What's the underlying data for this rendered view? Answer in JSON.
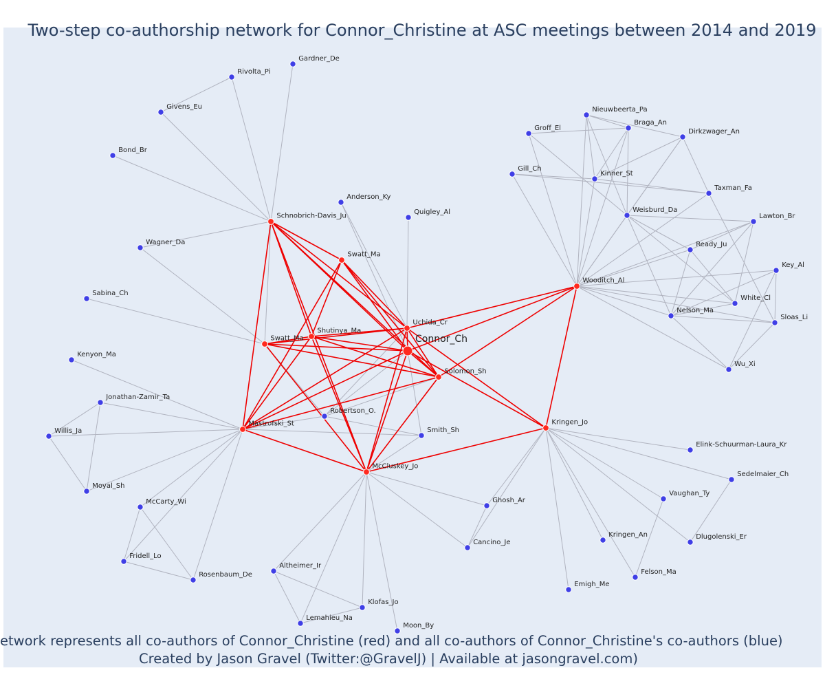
{
  "title": "Two-step co-authorship network for Connor_Christine at ASC meetings between 2014 and 2019",
  "footer": {
    "line1": "Network represents all co-authors of Connor_Christine (red) and all co-authors of Connor_Christine's co-authors (blue)",
    "line2": "Created by Jason Gravel (Twitter:@GravelJ) | Available at jasongravel.com)"
  },
  "colors": {
    "background": "#e5ecf6",
    "red_node": "#ff2a1f",
    "blue_node": "#3f3fe6",
    "red_edge": "#ee0000",
    "grey_edge": "#b0b3bf",
    "title": "#2a3f5f"
  },
  "center_node": "Connor_Ch",
  "red_nodes": [
    "Schnobrich-Davis_Ju",
    "Swatt_Ma (1)",
    "Swatt_Ma (2)",
    "Shutinya_Ma",
    "Uchida_Cr",
    "Solomon_Sh",
    "Mastrofski_St",
    "McCluskey_Jo",
    "Kringen_Jo",
    "Wooditch_Al"
  ],
  "blue_nodes": [
    "Gardner_De",
    "Rivolta_Pi",
    "Givens_Eu",
    "Bond_Br",
    "Anderson_Ky",
    "Quigley_Al",
    "Wagner_Da",
    "Sabina_Ch",
    "Kenyon_Ma",
    "Jonathan-Zamir_Ta",
    "Willis_Ja",
    "Moyal_Sh",
    "McCarty_Wi",
    "Fridell_Lo",
    "Rosenbaum_De",
    "Robertson_O.",
    "Smith_Sh",
    "Altheimer_Ir",
    "Lemahieu_Na",
    "Klofas_Jo",
    "Moon_By",
    "Ghosh_Ar",
    "Cancino_Je",
    "Emigh_Me",
    "Kringen_An",
    "Felson_Ma",
    "Vaughan_Ty",
    "Dlugolenski_Er",
    "Sedelmaier_Ch",
    "Elink-Schuurman-Laura_Kr",
    "Nieuwbeerta_Pa",
    "Braga_An",
    "Groff_El",
    "Dirkzwager_An",
    "Gill_Ch",
    "Kinner_St",
    "Taxman_Fa",
    "Weisburd_Da",
    "Lawton_Br",
    "Ready_Ju",
    "Key_Al",
    "White_Cl",
    "Nelson_Ma",
    "Sloas_Li",
    "Wu_Xi"
  ],
  "labels": {
    "Connor_Ch": "Connor_Ch",
    "Schnobrich-Davis_Ju": "Schnobrich-Davis_Ju",
    "Swatt_Ma (1)": "Swatt_Ma",
    "Swatt_Ma (2)": "Swatt_Ma",
    "Shutinya_Ma": "Shutinya_Ma",
    "Uchida_Cr": "Uchida_Cr",
    "Solomon_Sh": "Solomon_Sh",
    "Mastrofski_St": "Mastrofski_St",
    "McCluskey_Jo": "McCluskey_Jo",
    "Kringen_Jo": "Kringen_Jo",
    "Wooditch_Al": "Wooditch_Al",
    "Gardner_De": "Gardner_De",
    "Rivolta_Pi": "Rivolta_Pi",
    "Givens_Eu": "Givens_Eu",
    "Bond_Br": "Bond_Br",
    "Anderson_Ky": "Anderson_Ky",
    "Quigley_Al": "Quigley_Al",
    "Wagner_Da": "Wagner_Da",
    "Sabina_Ch": "Sabina_Ch",
    "Kenyon_Ma": "Kenyon_Ma",
    "Jonathan-Zamir_Ta": "Jonathan-Zamir_Ta",
    "Willis_Ja": "Willis_Ja",
    "Moyal_Sh": "Moyal_Sh",
    "McCarty_Wi": "McCarty_Wi",
    "Fridell_Lo": "Fridell_Lo",
    "Rosenbaum_De": "Rosenbaum_De",
    "Robertson_O.": "Robertson_O.",
    "Smith_Sh": "Smith_Sh",
    "Altheimer_Ir": "Altheimer_Ir",
    "Lemahieu_Na": "Lemahieu_Na",
    "Klofas_Jo": "Klofas_Jo",
    "Moon_By": "Moon_By",
    "Ghosh_Ar": "Ghosh_Ar",
    "Cancino_Je": "Cancino_Je",
    "Emigh_Me": "Emigh_Me",
    "Kringen_An": "Kringen_An",
    "Felson_Ma": "Felson_Ma",
    "Vaughan_Ty": "Vaughan_Ty",
    "Dlugolenski_Er": "Dlugolenski_Er",
    "Sedelmaier_Ch": "Sedelmaier_Ch",
    "Elink-Schuurman-Laura_Kr": "Elink-Schuurman-Laura_Kr",
    "Nieuwbeerta_Pa": "Nieuwbeerta_Pa",
    "Braga_An": "Braga_An",
    "Groff_El": "Groff_El",
    "Dirkzwager_An": "Dirkzwager_An",
    "Gill_Ch": "Gill_Ch",
    "Kinner_St": "Kinner_St",
    "Taxman_Fa": "Taxman_Fa",
    "Weisburd_Da": "Weisburd_Da",
    "Lawton_Br": "Lawton_Br",
    "Ready_Ju": "Ready_Ju",
    "Key_Al": "Key_Al",
    "White_Cl": "White_Cl",
    "Nelson_Ma": "Nelson_Ma",
    "Sloas_Li": "Sloas_Li",
    "Wu_Xi": "Wu_Xi"
  },
  "red_edges": [
    [
      "Schnobrich-Davis_Ju",
      "Swatt_Ma (2)"
    ],
    [
      "Schnobrich-Davis_Ju",
      "Shutinya_Ma"
    ],
    [
      "Schnobrich-Davis_Ju",
      "Uchida_Cr"
    ],
    [
      "Schnobrich-Davis_Ju",
      "Connor_Ch"
    ],
    [
      "Schnobrich-Davis_Ju",
      "Solomon_Sh"
    ],
    [
      "Schnobrich-Davis_Ju",
      "McCluskey_Jo"
    ],
    [
      "Swatt_Ma (1)",
      "Shutinya_Ma"
    ],
    [
      "Swatt_Ma (1)",
      "Uchida_Cr"
    ],
    [
      "Swatt_Ma (1)",
      "Connor_Ch"
    ],
    [
      "Swatt_Ma (1)",
      "Solomon_Sh"
    ],
    [
      "Swatt_Ma (1)",
      "McCluskey_Jo"
    ],
    [
      "Swatt_Ma (2)",
      "Shutinya_Ma"
    ],
    [
      "Swatt_Ma (2)",
      "Uchida_Cr"
    ],
    [
      "Swatt_Ma (2)",
      "Connor_Ch"
    ],
    [
      "Swatt_Ma (2)",
      "Solomon_Sh"
    ],
    [
      "Swatt_Ma (2)",
      "Mastrofski_St"
    ],
    [
      "Shutinya_Ma",
      "Uchida_Cr"
    ],
    [
      "Shutinya_Ma",
      "Connor_Ch"
    ],
    [
      "Shutinya_Ma",
      "Solomon_Sh"
    ],
    [
      "Shutinya_Ma",
      "Mastrofski_St"
    ],
    [
      "Shutinya_Ma",
      "McCluskey_Jo"
    ],
    [
      "Uchida_Cr",
      "Connor_Ch"
    ],
    [
      "Uchida_Cr",
      "Solomon_Sh"
    ],
    [
      "Uchida_Cr",
      "Mastrofski_St"
    ],
    [
      "Uchida_Cr",
      "McCluskey_Jo"
    ],
    [
      "Uchida_Cr",
      "Wooditch_Al"
    ],
    [
      "Uchida_Cr",
      "Kringen_Jo"
    ],
    [
      "Connor_Ch",
      "Solomon_Sh"
    ],
    [
      "Connor_Ch",
      "Mastrofski_St"
    ],
    [
      "Connor_Ch",
      "McCluskey_Jo"
    ],
    [
      "Connor_Ch",
      "Kringen_Jo"
    ],
    [
      "Connor_Ch",
      "Wooditch_Al"
    ],
    [
      "Solomon_Sh",
      "Mastrofski_St"
    ],
    [
      "Solomon_Sh",
      "McCluskey_Jo"
    ],
    [
      "Solomon_Sh",
      "Wooditch_Al"
    ],
    [
      "Mastrofski_St",
      "McCluskey_Jo"
    ],
    [
      "Mastrofski_St",
      "Schnobrich-Davis_Ju"
    ],
    [
      "McCluskey_Jo",
      "Kringen_Jo"
    ],
    [
      "Kringen_Jo",
      "Wooditch_Al"
    ]
  ],
  "grey_edges": [
    [
      "Schnobrich-Davis_Ju",
      "Gardner_De"
    ],
    [
      "Schnobrich-Davis_Ju",
      "Rivolta_Pi"
    ],
    [
      "Schnobrich-Davis_Ju",
      "Givens_Eu"
    ],
    [
      "Schnobrich-Davis_Ju",
      "Bond_Br"
    ],
    [
      "Schnobrich-Davis_Ju",
      "Wagner_Da"
    ],
    [
      "Rivolta_Pi",
      "Givens_Eu"
    ],
    [
      "Anderson_Ky",
      "Uchida_Cr"
    ],
    [
      "Anderson_Ky",
      "Connor_Ch"
    ],
    [
      "Quigley_Al",
      "Uchida_Cr"
    ],
    [
      "Wagner_Da",
      "Swatt_Ma (1)"
    ],
    [
      "Sabina_Ch",
      "Swatt_Ma (1)"
    ],
    [
      "Swatt_Ma (1)",
      "Schnobrich-Davis_Ju"
    ],
    [
      "Swatt_Ma (1)",
      "Robertson_O."
    ],
    [
      "Kenyon_Ma",
      "Mastrofski_St"
    ],
    [
      "Jonathan-Zamir_Ta",
      "Mastrofski_St"
    ],
    [
      "Willis_Ja",
      "Mastrofski_St"
    ],
    [
      "Moyal_Sh",
      "Mastrofski_St"
    ],
    [
      "McCarty_Wi",
      "Mastrofski_St"
    ],
    [
      "Rosenbaum_De",
      "Mastrofski_St"
    ],
    [
      "Jonathan-Zamir_Ta",
      "Willis_Ja"
    ],
    [
      "Jonathan-Zamir_Ta",
      "Moyal_Sh"
    ],
    [
      "Willis_Ja",
      "Moyal_Sh"
    ],
    [
      "McCarty_Wi",
      "Fridell_Lo"
    ],
    [
      "McCarty_Wi",
      "Rosenbaum_De"
    ],
    [
      "Fridell_Lo",
      "Rosenbaum_De"
    ],
    [
      "Fridell_Lo",
      "Mastrofski_St"
    ],
    [
      "Robertson_O.",
      "Solomon_Sh"
    ],
    [
      "Robertson_O.",
      "Connor_Ch"
    ],
    [
      "Robertson_O.",
      "Smith_Sh"
    ],
    [
      "Robertson_O.",
      "Mastrofski_St"
    ],
    [
      "Robertson_O.",
      "Uchida_Cr"
    ],
    [
      "Smith_Sh",
      "Connor_Ch"
    ],
    [
      "Smith_Sh",
      "McCluskey_Jo"
    ],
    [
      "Smith_Sh",
      "Mastrofski_St"
    ],
    [
      "McCluskey_Jo",
      "Altheimer_Ir"
    ],
    [
      "McCluskey_Jo",
      "Lemahieu_Na"
    ],
    [
      "McCluskey_Jo",
      "Klofas_Jo"
    ],
    [
      "McCluskey_Jo",
      "Moon_By"
    ],
    [
      "McCluskey_Jo",
      "Ghosh_Ar"
    ],
    [
      "McCluskey_Jo",
      "Cancino_Je"
    ],
    [
      "Altheimer_Ir",
      "Klofas_Jo"
    ],
    [
      "Altheimer_Ir",
      "Lemahieu_Na"
    ],
    [
      "Lemahieu_Na",
      "Klofas_Jo"
    ],
    [
      "Kringen_Jo",
      "Ghosh_Ar"
    ],
    [
      "Kringen_Jo",
      "Cancino_Je"
    ],
    [
      "Kringen_Jo",
      "Emigh_Me"
    ],
    [
      "Kringen_Jo",
      "Kringen_An"
    ],
    [
      "Kringen_Jo",
      "Felson_Ma"
    ],
    [
      "Kringen_Jo",
      "Vaughan_Ty"
    ],
    [
      "Kringen_Jo",
      "Dlugolenski_Er"
    ],
    [
      "Kringen_Jo",
      "Sedelmaier_Ch"
    ],
    [
      "Kringen_Jo",
      "Elink-Schuurman-Laura_Kr"
    ],
    [
      "Ghosh_Ar",
      "Cancino_Je"
    ],
    [
      "Vaughan_Ty",
      "Felson_Ma"
    ],
    [
      "Sedelmaier_Ch",
      "Dlugolenski_Er"
    ],
    [
      "Wooditch_Al",
      "Nieuwbeerta_Pa"
    ],
    [
      "Wooditch_Al",
      "Braga_An"
    ],
    [
      "Wooditch_Al",
      "Groff_El"
    ],
    [
      "Wooditch_Al",
      "Dirkzwager_An"
    ],
    [
      "Wooditch_Al",
      "Gill_Ch"
    ],
    [
      "Wooditch_Al",
      "Kinner_St"
    ],
    [
      "Wooditch_Al",
      "Taxman_Fa"
    ],
    [
      "Wooditch_Al",
      "Weisburd_Da"
    ],
    [
      "Wooditch_Al",
      "Lawton_Br"
    ],
    [
      "Wooditch_Al",
      "Ready_Ju"
    ],
    [
      "Wooditch_Al",
      "Key_Al"
    ],
    [
      "Wooditch_Al",
      "White_Cl"
    ],
    [
      "Wooditch_Al",
      "Nelson_Ma"
    ],
    [
      "Wooditch_Al",
      "Sloas_Li"
    ],
    [
      "Wooditch_Al",
      "Wu_Xi"
    ],
    [
      "Nieuwbeerta_Pa",
      "Braga_An"
    ],
    [
      "Nieuwbeerta_Pa",
      "Dirkzwager_An"
    ],
    [
      "Nieuwbeerta_Pa",
      "Kinner_St"
    ],
    [
      "Nieuwbeerta_Pa",
      "Weisburd_Da"
    ],
    [
      "Groff_El",
      "Braga_An"
    ],
    [
      "Groff_El",
      "Weisburd_Da"
    ],
    [
      "Braga_An",
      "Weisburd_Da"
    ],
    [
      "Braga_An",
      "Kinner_St"
    ],
    [
      "Dirkzwager_An",
      "Kinner_St"
    ],
    [
      "Dirkzwager_An",
      "Taxman_Fa"
    ],
    [
      "Dirkzwager_An",
      "Weisburd_Da"
    ],
    [
      "Gill_Ch",
      "Kinner_St"
    ],
    [
      "Gill_Ch",
      "Taxman_Fa"
    ],
    [
      "Kinner_St",
      "Taxman_Fa"
    ],
    [
      "Taxman_Fa",
      "Sloas_Li"
    ],
    [
      "Weisburd_Da",
      "Lawton_Br"
    ],
    [
      "Weisburd_Da",
      "Ready_Ju"
    ],
    [
      "Weisburd_Da",
      "Nelson_Ma"
    ],
    [
      "Weisburd_Da",
      "White_Cl"
    ],
    [
      "Lawton_Br",
      "Ready_Ju"
    ],
    [
      "Lawton_Br",
      "Nelson_Ma"
    ],
    [
      "Lawton_Br",
      "White_Cl"
    ],
    [
      "Ready_Ju",
      "Nelson_Ma"
    ],
    [
      "Ready_Ju",
      "White_Cl"
    ],
    [
      "Key_Al",
      "Nelson_Ma"
    ],
    [
      "Key_Al",
      "Sloas_Li"
    ],
    [
      "Key_Al",
      "Wu_Xi"
    ],
    [
      "Nelson_Ma",
      "Wu_Xi"
    ],
    [
      "Nelson_Ma",
      "White_Cl"
    ],
    [
      "Sloas_Li",
      "Wu_Xi"
    ],
    [
      "Sloas_Li",
      "Nelson_Ma"
    ]
  ]
}
